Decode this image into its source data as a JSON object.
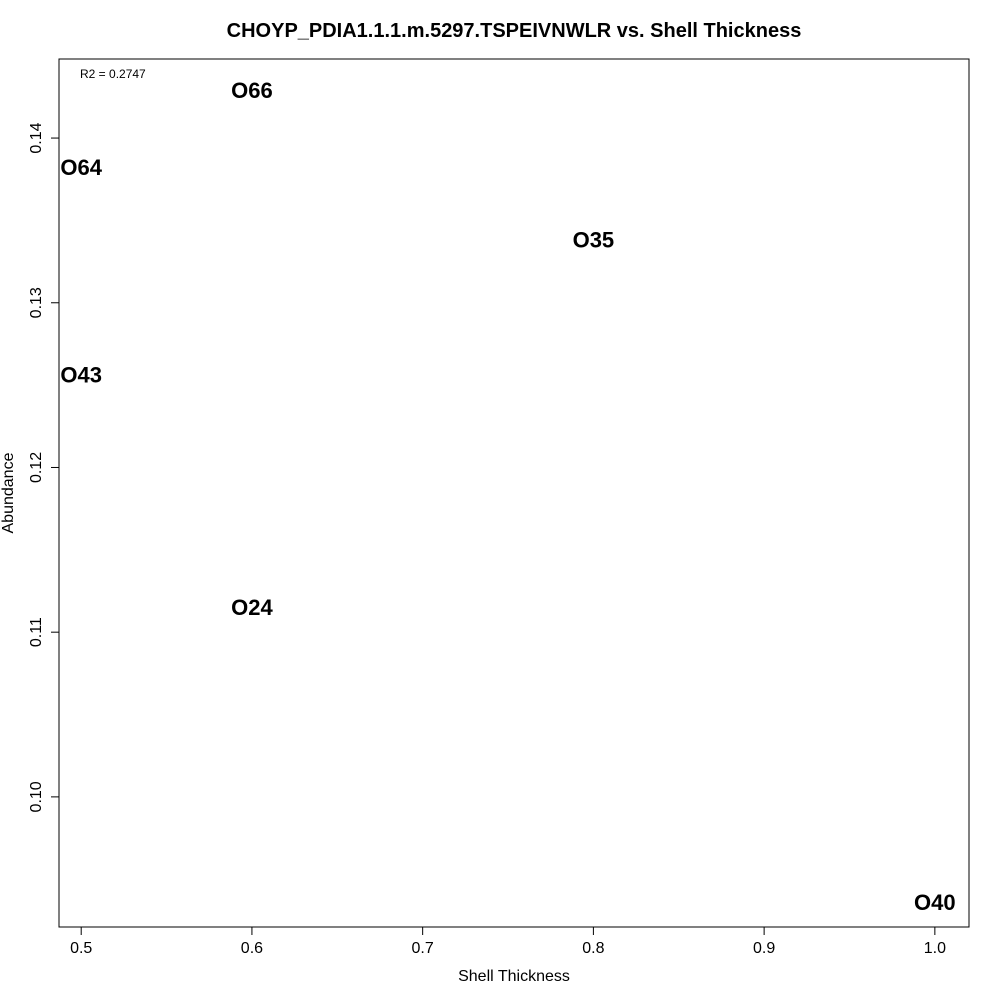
{
  "chart_data": {
    "type": "scatter",
    "title": "CHOYP_PDIA1.1.1.m.5297.TSPEIVNWLR vs. Shell Thickness",
    "xlabel": "Shell Thickness",
    "ylabel": "Abundance",
    "xlim": [
      0.487,
      1.02
    ],
    "ylim": [
      0.0921,
      0.1448
    ],
    "x_ticks": [
      0.5,
      0.6,
      0.7,
      0.8,
      0.9,
      1.0
    ],
    "x_tick_labels": [
      "0.5",
      "0.6",
      "0.7",
      "0.8",
      "0.9",
      "1.0"
    ],
    "y_ticks": [
      0.1,
      0.11,
      0.12,
      0.13,
      0.14
    ],
    "y_tick_labels": [
      "0.10",
      "0.11",
      "0.12",
      "0.13",
      "0.14"
    ],
    "annotation": "R2 = 0.2747",
    "grid": false,
    "points": [
      {
        "label": "O66",
        "x": 0.6,
        "y": 0.1429
      },
      {
        "label": "O64",
        "x": 0.5,
        "y": 0.1382
      },
      {
        "label": "O35",
        "x": 0.8,
        "y": 0.1338
      },
      {
        "label": "O43",
        "x": 0.5,
        "y": 0.1256
      },
      {
        "label": "O24",
        "x": 0.6,
        "y": 0.1115
      },
      {
        "label": "O40",
        "x": 1.0,
        "y": 0.0936
      }
    ]
  }
}
